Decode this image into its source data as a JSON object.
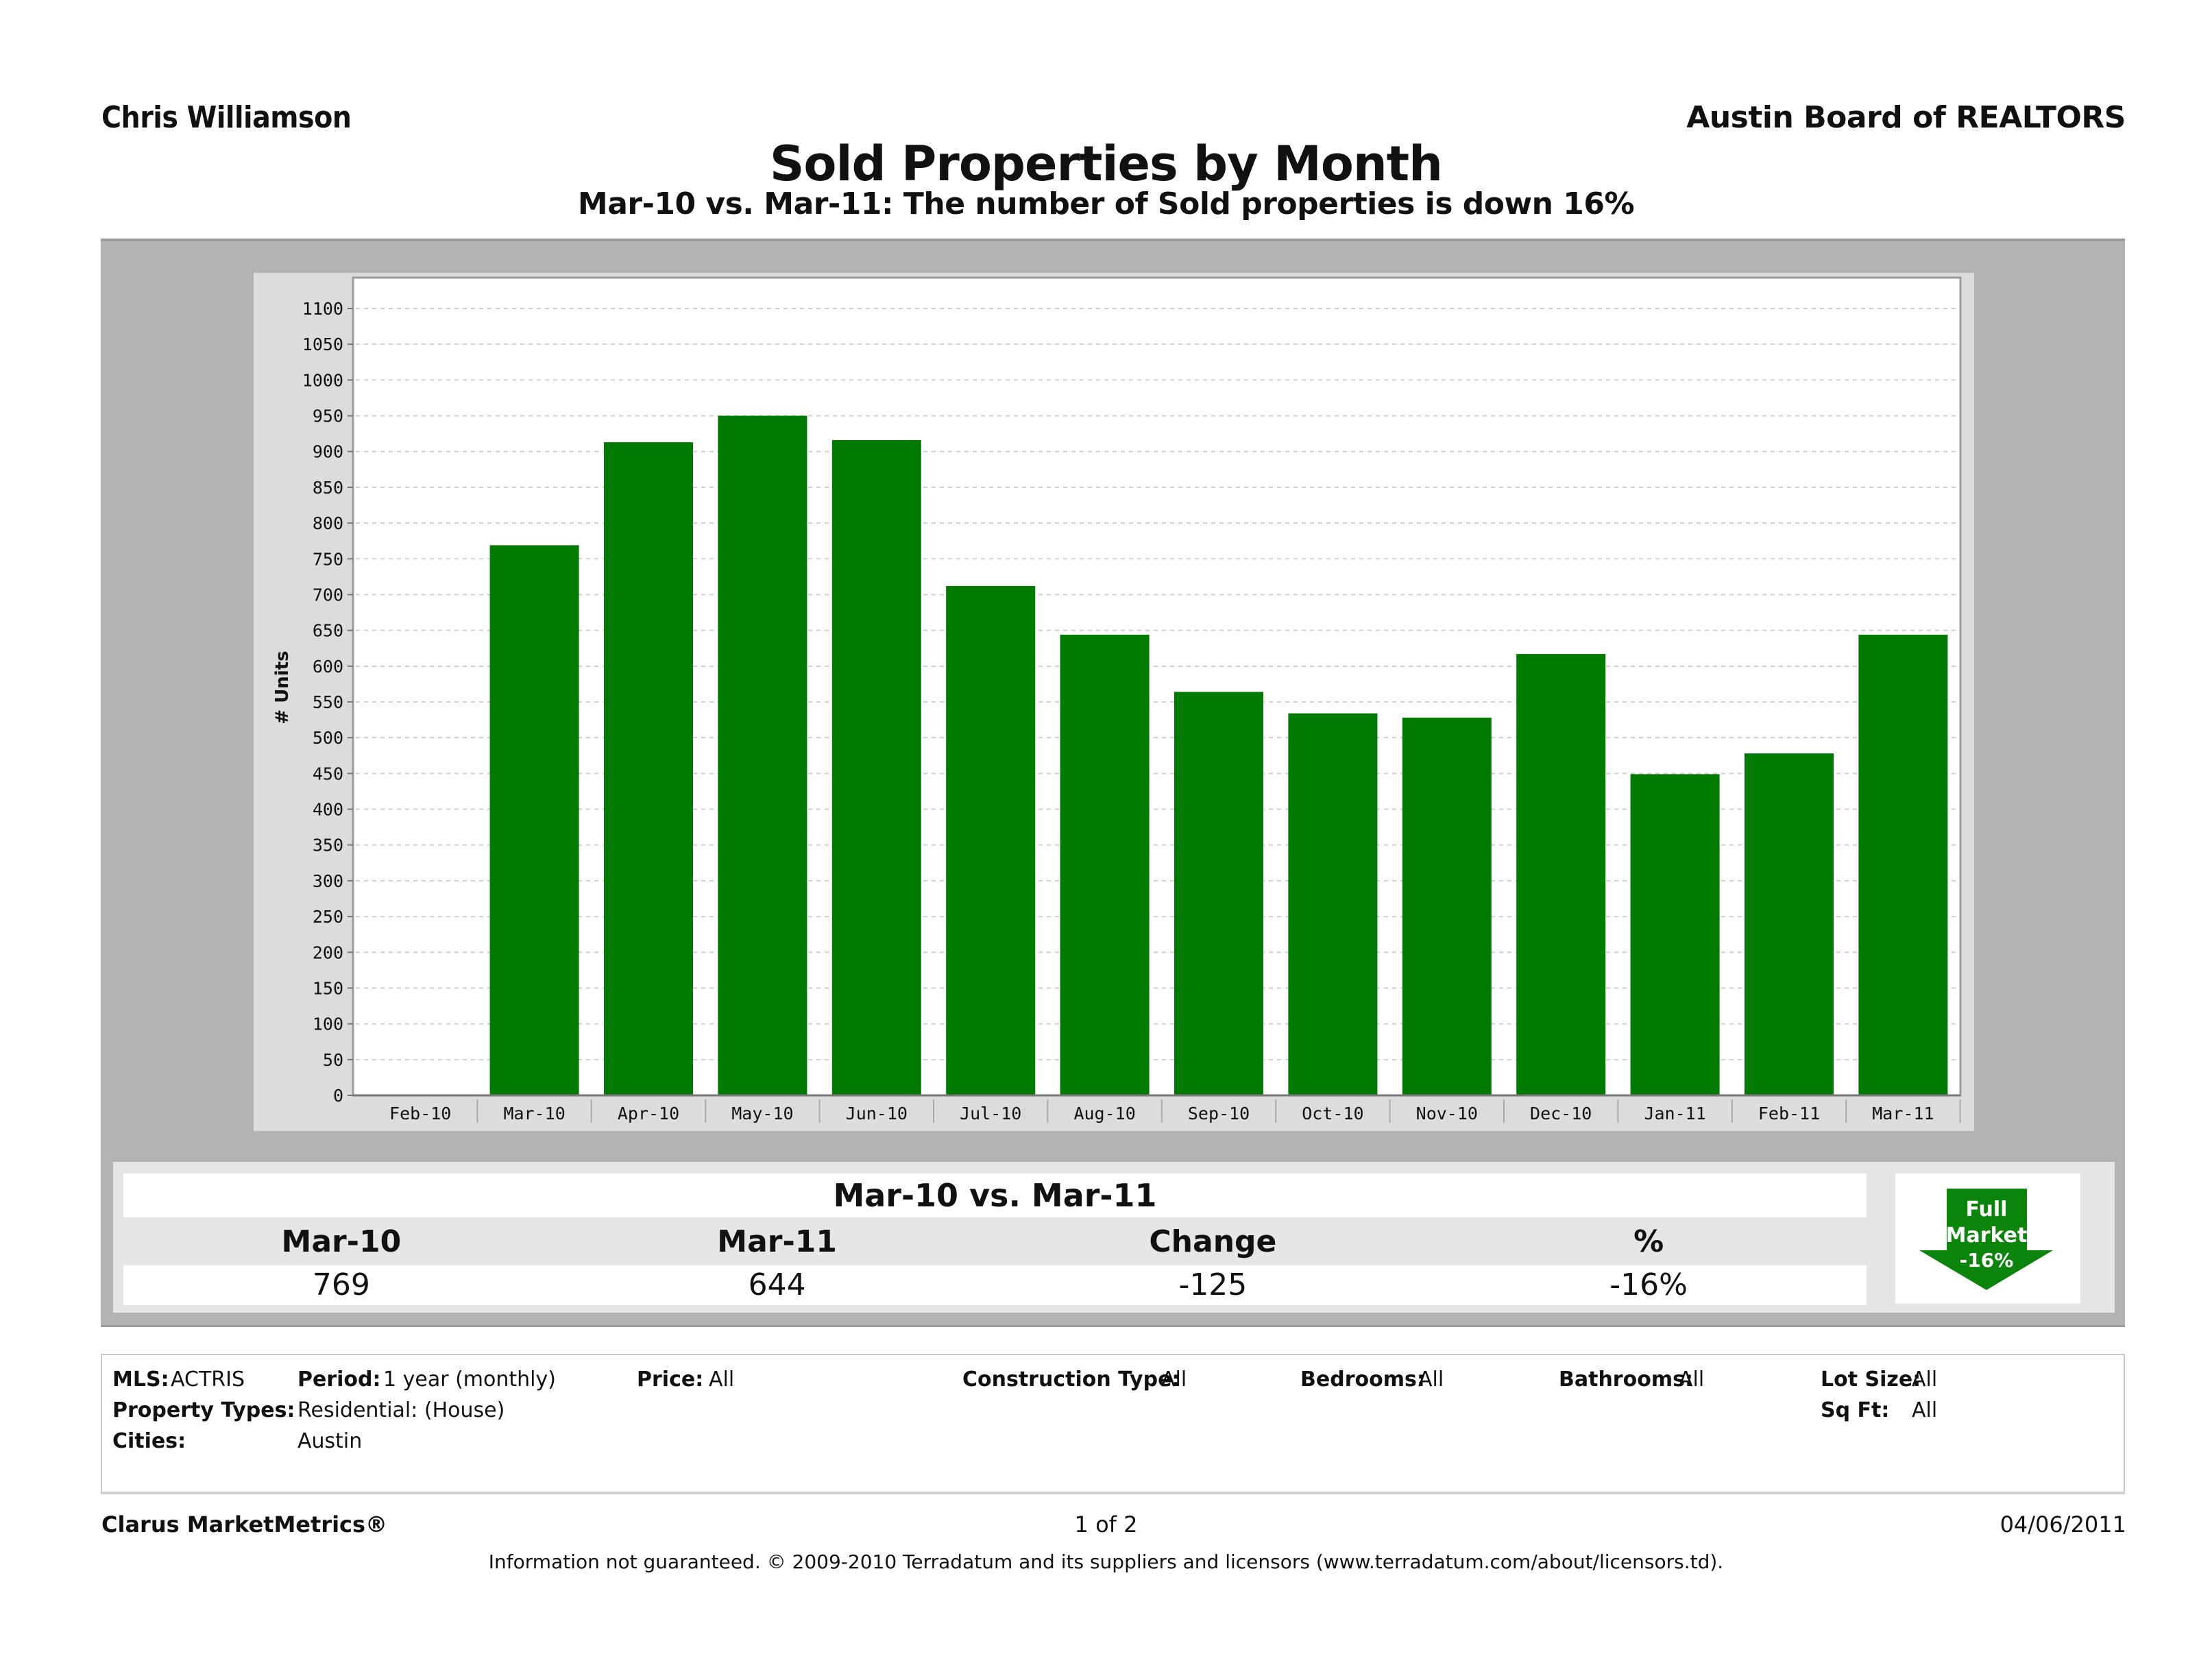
{
  "header": {
    "agent": "Chris Williamson",
    "board": "Austin Board of REALTORS",
    "title": "Sold Properties by Month",
    "subtitle": "Mar-10 vs. Mar-11: The number of Sold properties is down 16%"
  },
  "colors": {
    "bar": "#007a00",
    "badge_arrow": "#0a840a",
    "frame": "#b3b3b3",
    "chart_panel": "#dcdcdc"
  },
  "chart_data": {
    "type": "bar",
    "title": "Sold Properties by Month",
    "xlabel": "",
    "ylabel": "# Units",
    "ylim": [
      0,
      1100
    ],
    "y_ticks": [
      0,
      50,
      100,
      150,
      200,
      250,
      300,
      350,
      400,
      450,
      500,
      550,
      600,
      650,
      700,
      750,
      800,
      850,
      900,
      950,
      1000,
      1050,
      1100
    ],
    "grid": true,
    "legend": "none",
    "categories": [
      "Feb-10",
      "Mar-10",
      "Apr-10",
      "May-10",
      "Jun-10",
      "Jul-10",
      "Aug-10",
      "Sep-10",
      "Oct-10",
      "Nov-10",
      "Dec-10",
      "Jan-11",
      "Feb-11",
      "Mar-11"
    ],
    "series": [
      {
        "name": "Sold Properties",
        "values": [
          null,
          769,
          913,
          950,
          916,
          712,
          644,
          564,
          534,
          528,
          617,
          449,
          478,
          644
        ]
      }
    ]
  },
  "comparison": {
    "title": "Mar-10 vs. Mar-11",
    "headers": [
      "Mar-10",
      "Mar-11",
      "Change",
      "%"
    ],
    "values": [
      "769",
      "644",
      "-125",
      "-16%"
    ]
  },
  "badge": {
    "line1": "Full",
    "line2": "Market",
    "line3": "-16%",
    "direction": "down"
  },
  "filters": {
    "mls_label": "MLS:",
    "mls_value": "ACTRIS",
    "period_label": "Period:",
    "period_value": "1 year (monthly)",
    "price_label": "Price:",
    "price_value": "All",
    "construction_label": "Construction Type:",
    "construction_value": "All",
    "bedrooms_label": "Bedrooms:",
    "bedrooms_value": "All",
    "bathrooms_label": "Bathrooms:",
    "bathrooms_value": "All",
    "lotsize_label": "Lot Size:",
    "lotsize_value": "All",
    "proptypes_label": "Property Types:",
    "proptypes_value": "Residential: (House)",
    "sqft_label": "Sq Ft:",
    "sqft_value": "All",
    "cities_label": "Cities:",
    "cities_value": "Austin"
  },
  "footer": {
    "brand": "Clarus MarketMetrics®",
    "page": "1 of 2",
    "date": "04/06/2011",
    "disclaimer": "Information not guaranteed.  © 2009-2010 Terradatum and its suppliers and licensors (www.terradatum.com/about/licensors.td)."
  }
}
